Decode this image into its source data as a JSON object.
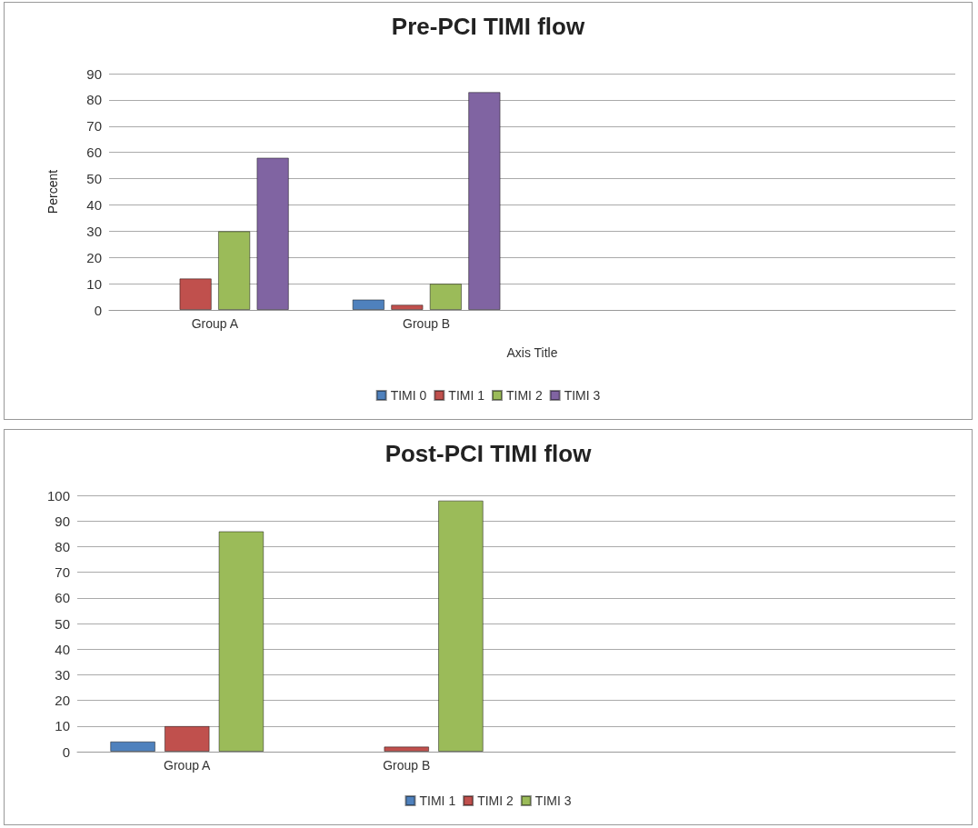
{
  "chart_data": [
    {
      "type": "bar",
      "title": "Pre-PCI TIMI flow",
      "xlabel": "Axis Title",
      "ylabel": "Percent",
      "categories": [
        "Group A",
        "Group B",
        null,
        null
      ],
      "series": [
        {
          "name": "TIMI 0",
          "color": "#4f81bd",
          "values": [
            null,
            4,
            null,
            null
          ]
        },
        {
          "name": "TIMI 1",
          "color": "#c0504d",
          "values": [
            12,
            2,
            null,
            null
          ]
        },
        {
          "name": "TIMI 2",
          "color": "#9bbb59",
          "values": [
            30,
            10,
            null,
            null
          ]
        },
        {
          "name": "TIMI 3",
          "color": "#8064a2",
          "values": [
            58,
            83,
            null,
            null
          ]
        }
      ],
      "ylim": [
        0,
        90
      ],
      "yticks": [
        0,
        10,
        20,
        30,
        40,
        50,
        60,
        70,
        80,
        90
      ],
      "grid": "y",
      "legend": "bottom"
    },
    {
      "type": "bar",
      "title": "Post-PCI TIMI flow",
      "categories": [
        "Group A",
        "Group B",
        null,
        null
      ],
      "series": [
        {
          "name": "TIMI 1",
          "color": "#4f81bd",
          "values": [
            4,
            null,
            null,
            null
          ]
        },
        {
          "name": "TIMI 2",
          "color": "#c0504d",
          "values": [
            10,
            2,
            null,
            null
          ]
        },
        {
          "name": "TIMI 3",
          "color": "#9bbb59",
          "values": [
            86,
            98,
            null,
            null
          ]
        }
      ],
      "ylim": [
        0,
        100
      ],
      "yticks": [
        0,
        10,
        20,
        30,
        40,
        50,
        60,
        70,
        80,
        90,
        100
      ],
      "grid": "y",
      "legend": "bottom"
    }
  ]
}
